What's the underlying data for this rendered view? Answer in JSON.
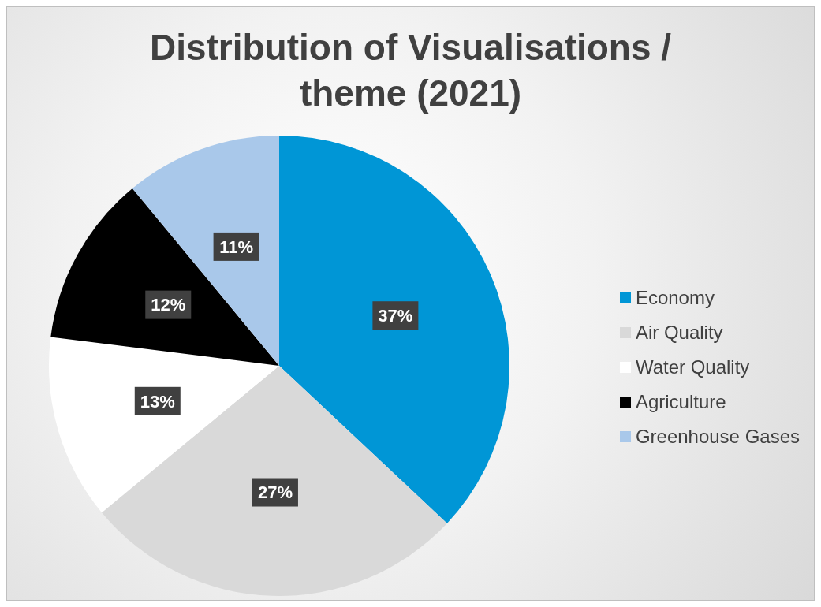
{
  "chart_data": {
    "type": "pie",
    "title": "Distribution of Visualisations / theme (2021)",
    "categories": [
      "Economy",
      "Air Quality",
      "Water Quality",
      "Agriculture",
      "Greenhouse Gases"
    ],
    "values": [
      37,
      27,
      13,
      12,
      11
    ],
    "colors": [
      "#0096d6",
      "#d9d9d9",
      "#ffffff",
      "#000000",
      "#a9c8ea"
    ],
    "value_labels": [
      "37%",
      "27%",
      "13%",
      "12%",
      "11%"
    ],
    "legend": "right"
  }
}
